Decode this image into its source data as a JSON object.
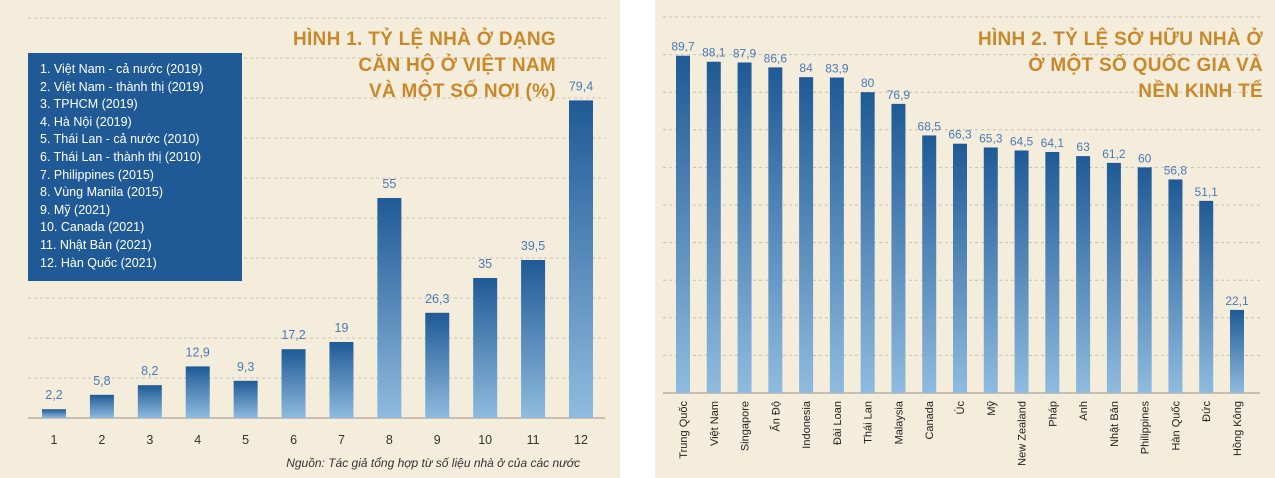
{
  "chart_data": [
    {
      "type": "bar",
      "title": "HÌNH 1. TỶ LỆ NHÀ Ở DẠNG CĂN HỘ Ở VIỆT NAM VÀ MỘT SỐ NƠI (%)",
      "title_lines": [
        "HÌNH 1. TỶ LỆ NHÀ Ở DẠNG",
        "CĂN HỘ Ở VIỆT NAM",
        "VÀ MỘT SỐ NƠI (%)"
      ],
      "categories": [
        "1",
        "2",
        "3",
        "4",
        "5",
        "6",
        "7",
        "8",
        "9",
        "10",
        "11",
        "12"
      ],
      "values": [
        2.2,
        5.8,
        8.2,
        12.9,
        9.3,
        17.2,
        19,
        55,
        26.3,
        35,
        39.5,
        79.4
      ],
      "value_labels": [
        "2,2",
        "5,8",
        "8,2",
        "12,9",
        "9,3",
        "17,2",
        "19",
        "55",
        "26,3",
        "35",
        "39,5",
        "79,4"
      ],
      "legend": [
        "1. Việt Nam - cả nước (2019)",
        "2. Việt Nam - thành thị (2019)",
        "3. TPHCM (2019)",
        "4. Hà Nội (2019)",
        "5. Thái Lan - cả nước (2010)",
        "6. Thái Lan - thành thị (2010)",
        "7. Philippines (2015)",
        "8. Vùng Manila (2015)",
        "9. Mỹ (2021)",
        "10. Canada (2021)",
        "11. Nhật Bản (2021)",
        "12. Hàn Quốc (2021)"
      ],
      "legend_position": "top-left",
      "source": "Nguồn: Tác giả tổng hợp từ số liệu nhà ở của các nước",
      "xlabel": "",
      "ylabel": "",
      "ylim": [
        0,
        100
      ],
      "grid": true
    },
    {
      "type": "bar",
      "title": "HÌNH 2. TỶ LỆ SỞ HỮU NHÀ Ở Ở MỘT SỐ QUỐC GIA VÀ NỀN KINH TẾ",
      "title_lines": [
        "HÌNH 2. TỶ LỆ SỞ HỮU NHÀ Ở",
        "Ở MỘT SỐ QUỐC GIA VÀ",
        "NỀN KINH TẾ"
      ],
      "categories": [
        "Trung Quốc",
        "Việt Nam",
        "Singapore",
        "Ấn Độ",
        "Indonesia",
        "Đài Loan",
        "Thái Lan",
        "Malaysia",
        "Canada",
        "Úc",
        "Mỹ",
        "New Zealand",
        "Pháp",
        "Anh",
        "Nhật Bản",
        "Philippines",
        "Hàn Quốc",
        "Đức",
        "Hồng Kông"
      ],
      "values": [
        89.7,
        88.1,
        87.9,
        86.6,
        84,
        83.9,
        80,
        76.9,
        68.5,
        66.3,
        65.3,
        64.5,
        64.1,
        63,
        61.2,
        60,
        56.8,
        51.1,
        22.1
      ],
      "value_labels": [
        "89,7",
        "88,1",
        "87,9",
        "86,6",
        "84",
        "83,9",
        "80",
        "76,9",
        "68,5",
        "66,3",
        "65,3",
        "64,5",
        "64,1",
        "63",
        "61,2",
        "60",
        "56,8",
        "51,1",
        "22,1"
      ],
      "xlabel": "",
      "ylabel": "",
      "ylim": [
        0,
        100
      ],
      "grid": true
    }
  ],
  "colors": {
    "panel_bg": "#f4eddc",
    "title": "#c9892a",
    "legend_bg": "#1f5a96",
    "bar_top": "#1f5a96",
    "bar_bottom": "#8fbbdf",
    "value_label": "#4a7ab5",
    "grid": "#c8c2b4"
  }
}
